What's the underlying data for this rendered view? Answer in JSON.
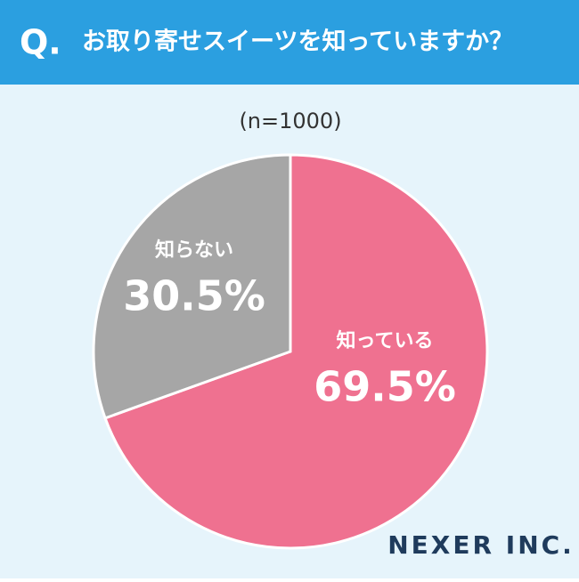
{
  "chart_data": {
    "type": "pie",
    "question_label": "Q.",
    "title": "お取り寄せスイーツを知っていますか？",
    "subtitle": "(n=1000)",
    "categories": [
      "知っている",
      "知らない"
    ],
    "values": [
      69.5,
      30.5
    ],
    "value_labels": [
      "69.5%",
      "30.5%"
    ],
    "colors": [
      "#ef7190",
      "#a6a6a6"
    ],
    "brand": "NEXER INC."
  }
}
